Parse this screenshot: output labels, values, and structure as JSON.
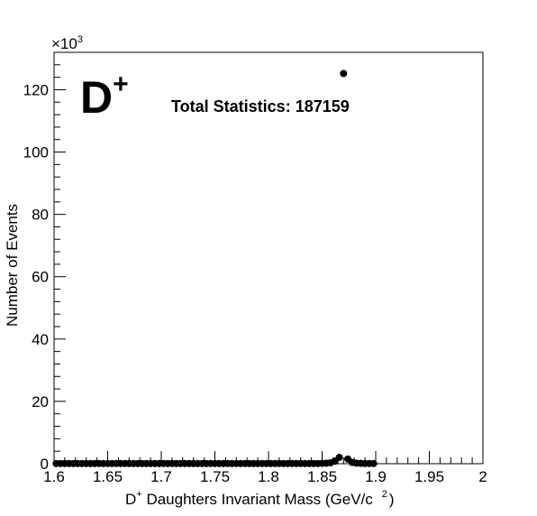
{
  "chart_data": {
    "type": "scatter",
    "marker": "filled-circle",
    "colors": {
      "marker": "#000000",
      "axis": "#000000",
      "background": "#ffffff"
    },
    "xlabel_main": "D",
    "xlabel_sup": "+",
    "xlabel_rest": " Daughters Invariant Mass (GeV/c",
    "xlabel_sup2": "2",
    "xlabel_close": ")",
    "ylabel": "Number of Events",
    "y_multiplier_base": "×10",
    "y_multiplier_exp": "3",
    "particle_main": "D",
    "particle_sup": "+",
    "stats_text": "Total Statistics: 187159",
    "xlim": [
      1.6,
      2.0
    ],
    "ylim": [
      0,
      132
    ],
    "x_ticks": [
      1.6,
      1.65,
      1.7,
      1.75,
      1.8,
      1.85,
      1.9,
      1.95,
      2.0
    ],
    "x_tick_labels": [
      "1.6",
      "1.65",
      "1.7",
      "1.75",
      "1.8",
      "1.85",
      "1.9",
      "1.95",
      "2"
    ],
    "y_ticks": [
      0,
      20,
      40,
      60,
      80,
      100,
      120
    ],
    "y_tick_labels": [
      "0",
      "20",
      "40",
      "60",
      "80",
      "100",
      "120"
    ],
    "grid": false,
    "legend": "none",
    "bin_width": 0.004,
    "x": [
      1.602,
      1.606,
      1.61,
      1.614,
      1.618,
      1.622,
      1.626,
      1.63,
      1.634,
      1.638,
      1.642,
      1.646,
      1.65,
      1.654,
      1.658,
      1.662,
      1.666,
      1.67,
      1.674,
      1.678,
      1.682,
      1.686,
      1.69,
      1.694,
      1.698,
      1.702,
      1.706,
      1.71,
      1.714,
      1.718,
      1.722,
      1.726,
      1.73,
      1.734,
      1.738,
      1.742,
      1.746,
      1.75,
      1.754,
      1.758,
      1.762,
      1.766,
      1.77,
      1.774,
      1.778,
      1.782,
      1.786,
      1.79,
      1.794,
      1.798,
      1.802,
      1.806,
      1.81,
      1.814,
      1.818,
      1.822,
      1.826,
      1.83,
      1.834,
      1.838,
      1.842,
      1.846,
      1.85,
      1.854,
      1.858,
      1.862,
      1.866,
      1.87,
      1.874,
      1.878,
      1.882,
      1.886,
      1.89,
      1.894,
      1.898
    ],
    "y": [
      0.05,
      0.05,
      0.05,
      0.05,
      0.05,
      0.05,
      0.05,
      0.05,
      0.05,
      0.05,
      0.05,
      0.05,
      0.05,
      0.05,
      0.05,
      0.05,
      0.05,
      0.05,
      0.05,
      0.05,
      0.05,
      0.05,
      0.05,
      0.05,
      0.05,
      0.05,
      0.05,
      0.05,
      0.05,
      0.05,
      0.05,
      0.05,
      0.05,
      0.05,
      0.05,
      0.05,
      0.05,
      0.05,
      0.05,
      0.05,
      0.05,
      0.05,
      0.05,
      0.05,
      0.05,
      0.05,
      0.05,
      0.05,
      0.05,
      0.05,
      0.05,
      0.05,
      0.05,
      0.05,
      0.05,
      0.05,
      0.05,
      0.05,
      0.05,
      0.05,
      0.05,
      0.05,
      0.1,
      0.15,
      0.3,
      0.8,
      2.0,
      125.2,
      1.5,
      0.4,
      0.15,
      0.1,
      0.05,
      0.05,
      0.05
    ]
  }
}
